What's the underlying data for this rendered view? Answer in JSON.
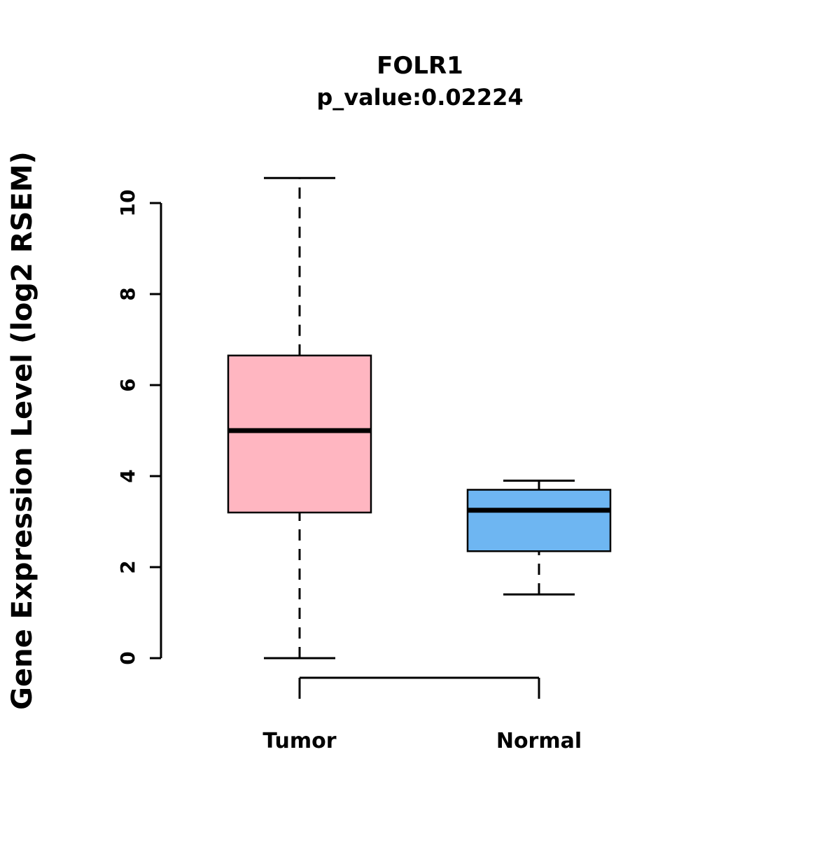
{
  "title": "FOLR1",
  "subtitle": "p_value:0.02224",
  "ylabel": "Gene Expression Level (log2 RSEM)",
  "chart_data": {
    "type": "boxplot",
    "title": "FOLR1",
    "subtitle": "p_value:0.02224",
    "ylabel": "Gene Expression Level (log2 RSEM)",
    "xlabel": "",
    "categories": [
      "Tumor",
      "Normal"
    ],
    "yticks": [
      0,
      2,
      4,
      6,
      8,
      10
    ],
    "ylim": [
      0,
      10.6
    ],
    "grid": false,
    "legend": "none",
    "series": [
      {
        "name": "Tumor",
        "whisker_low": 0.0,
        "q1": 3.2,
        "median": 5.0,
        "q3": 6.65,
        "whisker_high": 10.55,
        "fill_color": "#FFB6C1"
      },
      {
        "name": "Normal",
        "whisker_low": 1.4,
        "q1": 2.35,
        "median": 3.25,
        "q3": 3.7,
        "whisker_high": 3.9,
        "fill_color": "#6EB6F2"
      }
    ],
    "colors": {
      "tumor_box": "#FFB6C1",
      "normal_box": "#6EB6F2",
      "stroke": "#000000",
      "background": "#FFFFFF"
    }
  }
}
